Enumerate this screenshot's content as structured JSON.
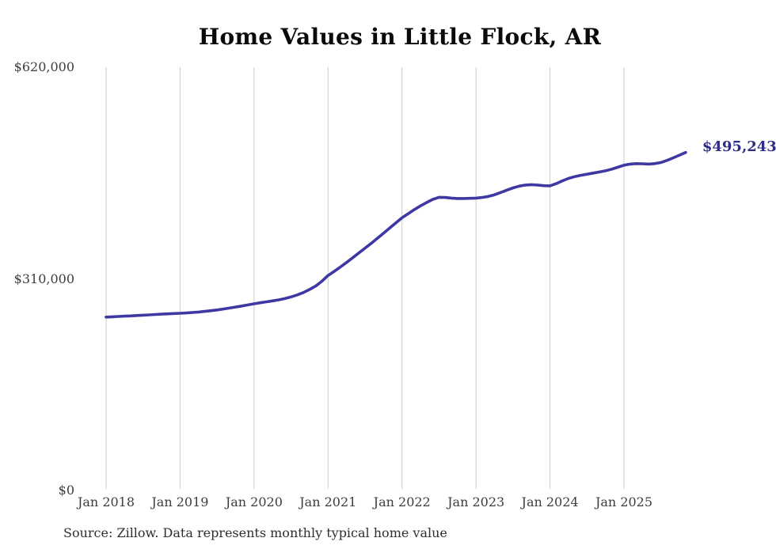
{
  "title": "Home Values in Little Flock, AR",
  "annotation": {
    "text": "$495,243"
  },
  "source": {
    "text": "Source: Zillow. Data represents monthly typical home value"
  },
  "colors": {
    "line": "#3e38a2",
    "annotation": "#2d2d86",
    "gridline": "#cccccc",
    "title": "#0a0a0a",
    "tick_label": "#3d3d3d",
    "source_text": "#2e2e2e",
    "background": "#ffffff"
  },
  "chart_data": {
    "type": "line",
    "title": "Home Values in Little Flock, AR",
    "xlabel": "",
    "ylabel": "",
    "ylim": [
      0,
      620000
    ],
    "grid": "vertical",
    "legend": "none",
    "current_value": 495243,
    "current_value_label": "$495,243",
    "y_ticks": [
      {
        "value": 620000,
        "label": "$620,000"
      },
      {
        "value": 310000,
        "label": "$310,000"
      },
      {
        "value": 0,
        "label": "$0"
      }
    ],
    "x_ticks": [
      {
        "month_index": 0,
        "label": "Jan 2018"
      },
      {
        "month_index": 12,
        "label": "Jan 2019"
      },
      {
        "month_index": 24,
        "label": "Jan 2020"
      },
      {
        "month_index": 36,
        "label": "Jan 2021"
      },
      {
        "month_index": 48,
        "label": "Jan 2022"
      },
      {
        "month_index": 60,
        "label": "Jan 2023"
      },
      {
        "month_index": 72,
        "label": "Jan 2024"
      },
      {
        "month_index": 84,
        "label": "Jan 2025"
      }
    ],
    "x": [
      "2018-01",
      "2018-02",
      "2018-03",
      "2018-04",
      "2018-05",
      "2018-06",
      "2018-07",
      "2018-08",
      "2018-09",
      "2018-10",
      "2018-11",
      "2018-12",
      "2019-01",
      "2019-02",
      "2019-03",
      "2019-04",
      "2019-05",
      "2019-06",
      "2019-07",
      "2019-08",
      "2019-09",
      "2019-10",
      "2019-11",
      "2019-12",
      "2020-01",
      "2020-02",
      "2020-03",
      "2020-04",
      "2020-05",
      "2020-06",
      "2020-07",
      "2020-08",
      "2020-09",
      "2020-10",
      "2020-11",
      "2020-12",
      "2021-01",
      "2021-02",
      "2021-03",
      "2021-04",
      "2021-05",
      "2021-06",
      "2021-07",
      "2021-08",
      "2021-09",
      "2021-10",
      "2021-11",
      "2021-12",
      "2022-01",
      "2022-02",
      "2022-03",
      "2022-04",
      "2022-05",
      "2022-06",
      "2022-07",
      "2022-08",
      "2022-09",
      "2022-10",
      "2022-11",
      "2022-12",
      "2023-01",
      "2023-02",
      "2023-03",
      "2023-04",
      "2023-05",
      "2023-06",
      "2023-07",
      "2023-08",
      "2023-09",
      "2023-10",
      "2023-11",
      "2023-12",
      "2024-01",
      "2024-02",
      "2024-03",
      "2024-04",
      "2024-05",
      "2024-06",
      "2024-07",
      "2024-08",
      "2024-09",
      "2024-10",
      "2024-11",
      "2024-12",
      "2025-01",
      "2025-02",
      "2025-03",
      "2025-04",
      "2025-05",
      "2025-06",
      "2025-07",
      "2025-08",
      "2025-09",
      "2025-10",
      "2025-11"
    ],
    "values": [
      254000,
      254500,
      255000,
      255400,
      255800,
      256300,
      256800,
      257300,
      257800,
      258300,
      258800,
      259200,
      259600,
      260100,
      260700,
      261500,
      262400,
      263400,
      264500,
      265800,
      267200,
      268700,
      270300,
      271900,
      273500,
      275000,
      276400,
      277800,
      279300,
      281200,
      283600,
      286500,
      290000,
      294500,
      299500,
      306500,
      315000,
      321000,
      327500,
      334000,
      341000,
      348000,
      355000,
      362000,
      369500,
      377000,
      384500,
      392000,
      399500,
      405500,
      411500,
      417000,
      422000,
      426500,
      429500,
      429300,
      428300,
      427800,
      427800,
      428000,
      428300,
      429200,
      430800,
      433200,
      436500,
      440000,
      443300,
      445800,
      447400,
      448000,
      447400,
      446500,
      446300,
      449500,
      453500,
      457200,
      459700,
      461700,
      463300,
      465000,
      466600,
      468300,
      470600,
      473500,
      476500,
      478200,
      478900,
      478600,
      478200,
      478800,
      480500,
      483600,
      487300,
      491300,
      495243
    ]
  }
}
